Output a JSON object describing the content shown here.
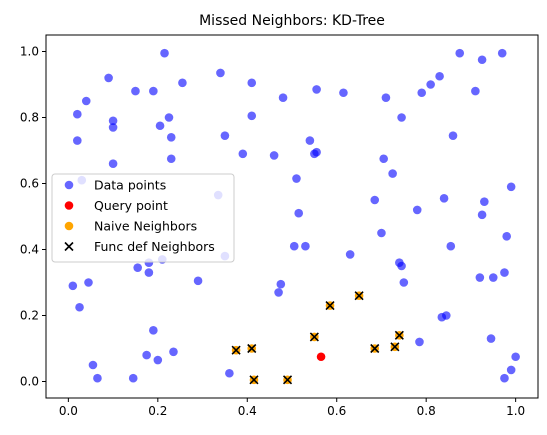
{
  "chart_data": {
    "type": "scatter",
    "title": "Missed Neighbors: KD-Tree",
    "xlabel": "",
    "ylabel": "",
    "xlim": [
      -0.05,
      1.05
    ],
    "ylim": [
      -0.05,
      1.05
    ],
    "xticks": [
      0.0,
      0.2,
      0.4,
      0.6,
      0.8,
      1.0
    ],
    "yticks": [
      0.0,
      0.2,
      0.4,
      0.6,
      0.8,
      1.0
    ],
    "xtick_labels": [
      "0.0",
      "0.2",
      "0.4",
      "0.6",
      "0.8",
      "1.0"
    ],
    "ytick_labels": [
      "0.0",
      "0.2",
      "0.4",
      "0.6",
      "0.8",
      "1.0"
    ],
    "grid": false,
    "legend_position": "center-left",
    "series": [
      {
        "name": "Data points",
        "marker": "circle",
        "color": "#0000ff",
        "points": [
          [
            0.01,
            0.29
          ],
          [
            0.02,
            0.73
          ],
          [
            0.02,
            0.81
          ],
          [
            0.025,
            0.225
          ],
          [
            0.03,
            0.61
          ],
          [
            0.04,
            0.85
          ],
          [
            0.045,
            0.3
          ],
          [
            0.055,
            0.05
          ],
          [
            0.065,
            0.01
          ],
          [
            0.09,
            0.92
          ],
          [
            0.1,
            0.79
          ],
          [
            0.1,
            0.77
          ],
          [
            0.1,
            0.66
          ],
          [
            0.145,
            0.01
          ],
          [
            0.15,
            0.88
          ],
          [
            0.155,
            0.345
          ],
          [
            0.175,
            0.08
          ],
          [
            0.18,
            0.36
          ],
          [
            0.18,
            0.33
          ],
          [
            0.19,
            0.88
          ],
          [
            0.19,
            0.155
          ],
          [
            0.2,
            0.065
          ],
          [
            0.205,
            0.775
          ],
          [
            0.21,
            0.37
          ],
          [
            0.215,
            0.995
          ],
          [
            0.225,
            0.8
          ],
          [
            0.23,
            0.74
          ],
          [
            0.23,
            0.675
          ],
          [
            0.235,
            0.09
          ],
          [
            0.255,
            0.905
          ],
          [
            0.29,
            0.305
          ],
          [
            0.335,
            0.565
          ],
          [
            0.34,
            0.935
          ],
          [
            0.35,
            0.745
          ],
          [
            0.35,
            0.38
          ],
          [
            0.36,
            0.025
          ],
          [
            0.39,
            0.69
          ],
          [
            0.41,
            0.905
          ],
          [
            0.41,
            0.805
          ],
          [
            0.46,
            0.685
          ],
          [
            0.47,
            0.27
          ],
          [
            0.475,
            0.295
          ],
          [
            0.48,
            0.86
          ],
          [
            0.505,
            0.41
          ],
          [
            0.51,
            0.615
          ],
          [
            0.515,
            0.51
          ],
          [
            0.53,
            0.41
          ],
          [
            0.54,
            0.73
          ],
          [
            0.55,
            0.69
          ],
          [
            0.555,
            0.885
          ],
          [
            0.555,
            0.695
          ],
          [
            0.615,
            0.875
          ],
          [
            0.63,
            0.385
          ],
          [
            0.685,
            0.55
          ],
          [
            0.7,
            0.45
          ],
          [
            0.705,
            0.675
          ],
          [
            0.71,
            0.86
          ],
          [
            0.725,
            0.63
          ],
          [
            0.74,
            0.36
          ],
          [
            0.745,
            0.8
          ],
          [
            0.745,
            0.35
          ],
          [
            0.75,
            0.3
          ],
          [
            0.78,
            0.52
          ],
          [
            0.785,
            0.12
          ],
          [
            0.79,
            0.875
          ],
          [
            0.81,
            0.9
          ],
          [
            0.83,
            0.925
          ],
          [
            0.835,
            0.195
          ],
          [
            0.84,
            0.555
          ],
          [
            0.845,
            0.2
          ],
          [
            0.855,
            0.41
          ],
          [
            0.86,
            0.745
          ],
          [
            0.875,
            0.995
          ],
          [
            0.91,
            0.88
          ],
          [
            0.92,
            0.315
          ],
          [
            0.925,
            0.505
          ],
          [
            0.925,
            0.975
          ],
          [
            0.93,
            0.545
          ],
          [
            0.945,
            0.13
          ],
          [
            0.95,
            0.315
          ],
          [
            0.97,
            0.995
          ],
          [
            0.975,
            0.01
          ],
          [
            0.975,
            0.33
          ],
          [
            0.98,
            0.44
          ],
          [
            0.99,
            0.59
          ],
          [
            0.99,
            0.035
          ],
          [
            1.0,
            0.075
          ]
        ]
      },
      {
        "name": "Query point",
        "marker": "circle",
        "color": "#ff0000",
        "points": [
          [
            0.565,
            0.075
          ]
        ]
      },
      {
        "name": "Naive Neighbors",
        "marker": "circle",
        "color": "#ffa500",
        "points": [
          [
            0.375,
            0.095
          ],
          [
            0.41,
            0.1
          ],
          [
            0.415,
            0.005
          ],
          [
            0.49,
            0.005
          ],
          [
            0.55,
            0.135
          ],
          [
            0.585,
            0.23
          ],
          [
            0.65,
            0.26
          ],
          [
            0.685,
            0.1
          ],
          [
            0.73,
            0.105
          ],
          [
            0.74,
            0.14
          ]
        ]
      },
      {
        "name": "Func def Neighbors",
        "marker": "x",
        "color": "#000000",
        "points": [
          [
            0.375,
            0.095
          ],
          [
            0.41,
            0.1
          ],
          [
            0.415,
            0.005
          ],
          [
            0.49,
            0.005
          ],
          [
            0.55,
            0.135
          ],
          [
            0.585,
            0.23
          ],
          [
            0.65,
            0.26
          ],
          [
            0.685,
            0.1
          ],
          [
            0.73,
            0.105
          ],
          [
            0.74,
            0.14
          ]
        ]
      }
    ]
  }
}
